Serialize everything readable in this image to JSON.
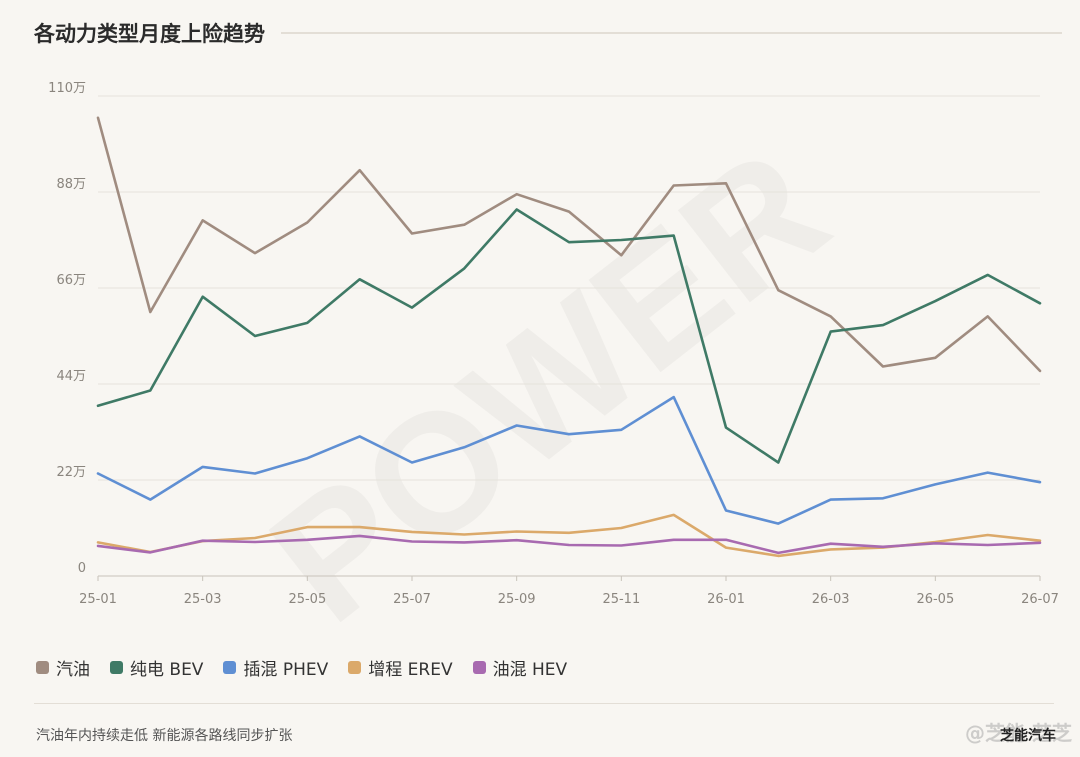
{
  "header": {
    "title": "各动力类型月度上险趋势"
  },
  "watermark": {
    "text": "POWER"
  },
  "colors": {
    "grid": "#e6e2dc",
    "axis": "#c8c3bb",
    "tick_text": "#8a857e"
  },
  "chart_data": {
    "type": "line",
    "x_ticks": [
      "25-01",
      "25-03",
      "25-05",
      "25-07",
      "25-09",
      "25-11",
      "26-01",
      "26-03",
      "26-05",
      "26-07"
    ],
    "x": [
      "25-01",
      "25-02",
      "25-03",
      "25-04",
      "25-05",
      "25-06",
      "25-07",
      "25-08",
      "25-09",
      "25-10",
      "25-11",
      "25-12",
      "26-01",
      "26-02",
      "26-03",
      "26-04",
      "26-05",
      "26-06",
      "26-07"
    ],
    "y_ticks": [
      {
        "value": 0,
        "label": "0"
      },
      {
        "value": 22,
        "label": "22万"
      },
      {
        "value": 44,
        "label": "44万"
      },
      {
        "value": 66,
        "label": "66万"
      },
      {
        "value": 88,
        "label": "88万"
      },
      {
        "value": 110,
        "label": "110万"
      }
    ],
    "ylim": [
      0,
      110
    ],
    "grid": true,
    "legend_position": "bottom-left",
    "series": [
      {
        "name": "汽油",
        "color": "#a08c80",
        "values": [
          105,
          60.5,
          81.5,
          74,
          81,
          93,
          78.5,
          80.5,
          87.5,
          83.5,
          73.5,
          89.5,
          90,
          65.5,
          59.5,
          48,
          50,
          59.5,
          47
        ]
      },
      {
        "name": "纯电 BEV",
        "color": "#3f7a66",
        "values": [
          39,
          42.5,
          64,
          55,
          58,
          68,
          61.5,
          70.5,
          84,
          76.5,
          77,
          78,
          34,
          26,
          56,
          57.5,
          63,
          69,
          62.5
        ]
      },
      {
        "name": "插混 PHEV",
        "color": "#5f8fd3",
        "values": [
          23.5,
          17.5,
          25,
          23.5,
          27,
          32,
          26,
          29.5,
          34.5,
          32.5,
          33.5,
          41,
          15,
          12,
          17.5,
          17.8,
          21,
          23.7,
          21.5
        ]
      },
      {
        "name": "增程 EREV",
        "color": "#dba96a",
        "values": [
          7.7,
          5.5,
          8,
          8.7,
          11.2,
          11.2,
          10.1,
          9.5,
          10.2,
          9.9,
          11,
          14,
          6.5,
          4.6,
          6.1,
          6.5,
          7.8,
          9.4,
          8.1
        ]
      },
      {
        "name": "油混 HEV",
        "color": "#a86ab0",
        "values": [
          6.9,
          5.4,
          8.1,
          7.8,
          8.3,
          9.2,
          7.9,
          7.7,
          8.2,
          7.1,
          7,
          8.3,
          8.3,
          5.3,
          7.4,
          6.7,
          7.5,
          7.1,
          7.6
        ]
      }
    ]
  },
  "footer": {
    "note": "汽油年内持续走低 新能源各路线同步扩张",
    "brand": "芝能汽车",
    "weibo_watermark": "@芝能 芝芝"
  }
}
